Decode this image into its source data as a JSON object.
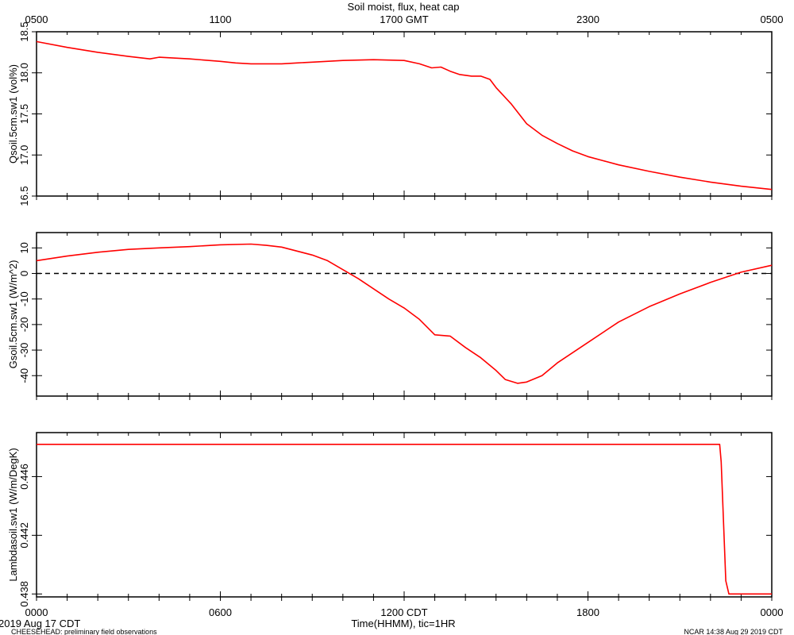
{
  "title": "Soil moist, flux, heat cap",
  "top_axis": {
    "ticks": [
      {
        "hour": 0,
        "label": "0500"
      },
      {
        "hour": 6,
        "label": "1100"
      },
      {
        "hour": 12,
        "label": "1700 GMT"
      },
      {
        "hour": 18,
        "label": "2300"
      },
      {
        "hour": 24,
        "label": "0500"
      }
    ]
  },
  "bottom_axis": {
    "label": "Time(HHMM), tic=1HR",
    "ticks": [
      {
        "hour": 0,
        "label": "0000"
      },
      {
        "hour": 6,
        "label": "0600"
      },
      {
        "hour": 12,
        "label": "1200 CDT"
      },
      {
        "hour": 18,
        "label": "1800"
      },
      {
        "hour": 24,
        "label": "0000"
      }
    ]
  },
  "footer": {
    "date": "2019 Aug 17 CDT",
    "project": "CHEESEHEAD: preliminary field observations",
    "credit": "NCAR 14:38 Aug 29 2019 CDT"
  },
  "chart_data": [
    {
      "type": "line",
      "ylabel": "Qsoil.5cm.sw1 (vol%)",
      "ylim": [
        16.5,
        18.5
      ],
      "yticks": [
        {
          "v": 16.5,
          "label": "16.5"
        },
        {
          "v": 17.0,
          "label": "17.0"
        },
        {
          "v": 17.5,
          "label": "17.5"
        },
        {
          "v": 18.0,
          "label": "18.0"
        },
        {
          "v": 18.5,
          "label": "18.5"
        }
      ],
      "color": "#ff0000",
      "x": [
        0,
        1,
        2,
        3,
        3.7,
        4,
        5,
        6,
        6.5,
        7,
        8,
        8.5,
        9,
        10,
        11,
        12,
        12.5,
        12.9,
        13.2,
        13.5,
        13.8,
        14.2,
        14.5,
        14.8,
        15,
        15.2,
        15.5,
        16,
        16.5,
        17,
        17.5,
        18,
        18.5,
        19,
        20,
        21,
        22,
        23,
        24
      ],
      "y": [
        18.38,
        18.31,
        18.25,
        18.2,
        18.17,
        18.19,
        18.17,
        18.14,
        18.12,
        18.11,
        18.11,
        18.12,
        18.13,
        18.15,
        18.16,
        18.15,
        18.11,
        18.06,
        18.07,
        18.02,
        17.98,
        17.96,
        17.96,
        17.92,
        17.82,
        17.74,
        17.62,
        17.38,
        17.24,
        17.14,
        17.05,
        16.98,
        16.93,
        16.88,
        16.8,
        16.73,
        16.67,
        16.62,
        16.58
      ]
    },
    {
      "type": "line",
      "ylabel": "Gsoil.5cm.sw1 (W/m^2)",
      "ylim": [
        -48,
        16
      ],
      "yticks": [
        {
          "v": 10,
          "label": "10"
        },
        {
          "v": 0,
          "label": "0"
        },
        {
          "v": -10,
          "label": "-10"
        },
        {
          "v": -20,
          "label": "-20"
        },
        {
          "v": -30,
          "label": "-30"
        },
        {
          "v": -40,
          "label": "-40"
        }
      ],
      "zero_line": true,
      "color": "#ff0000",
      "x": [
        0,
        1,
        2,
        3,
        4,
        5,
        6,
        7,
        7.5,
        8,
        9,
        9.5,
        10,
        10.5,
        11,
        11.5,
        12,
        12.5,
        13,
        13.5,
        14,
        14.5,
        15,
        15.3,
        15.7,
        16,
        16.5,
        17,
        17.5,
        18,
        19,
        20,
        21,
        22,
        23,
        24
      ],
      "y": [
        5,
        6.8,
        8.3,
        9.4,
        10.0,
        10.5,
        11.2,
        11.5,
        11.0,
        10.3,
        7.2,
        5.0,
        1.5,
        -2.0,
        -6.0,
        -10.0,
        -13.5,
        -18.0,
        -24.0,
        -24.5,
        -29.0,
        -33.0,
        -38.0,
        -41.5,
        -43.0,
        -42.5,
        -40.0,
        -35.0,
        -31.0,
        -27.0,
        -19.0,
        -13.0,
        -8.0,
        -3.5,
        0.5,
        3.2
      ]
    },
    {
      "type": "line",
      "ylabel": "Lambdasoil.sw1 (W/m/DegK)",
      "ylim": [
        0.4378,
        0.449
      ],
      "yticks": [
        {
          "v": 0.438,
          "label": "0.438"
        },
        {
          "v": 0.442,
          "label": "0.442"
        },
        {
          "v": 0.446,
          "label": "0.446"
        }
      ],
      "color": "#ff0000",
      "x": [
        0,
        22.3,
        22.35,
        22.5,
        22.6,
        24
      ],
      "y": [
        0.4482,
        0.4482,
        0.447,
        0.4389,
        0.438,
        0.438
      ]
    }
  ]
}
